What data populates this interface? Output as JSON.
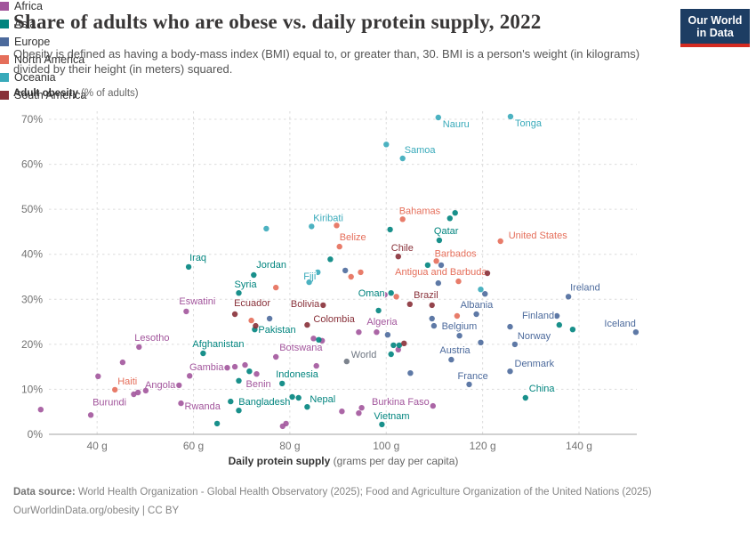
{
  "header": {
    "title": "Share of adults who are obese vs. daily protein supply, 2022",
    "subtitle": "Obesity is defined as having a body-mass index (BMI) equal to, or greater than, 30. BMI is a person's weight (in kilograms) divided by their height (in meters) squared.",
    "logo_line1": "Our World",
    "logo_line2": "in Data"
  },
  "brand": {
    "navy": "#1d3d63",
    "red": "#d42b21"
  },
  "footer": {
    "source_label": "Data source:",
    "source_text": " World Health Organization - Global Health Observatory (2025); Food and Agriculture Organization of the United Nations (2025)",
    "license": "OurWorldinData.org/obesity | CC BY"
  },
  "chart_data": {
    "type": "scatter",
    "title": "Share of adults who are obese vs. daily protein supply, 2022",
    "xlabel_bold": "Daily protein supply",
    "xlabel_rest": " (grams per day per capita)",
    "ylabel_bold": "Adult obesity",
    "ylabel_rest": " (% of adults)",
    "xlim": [
      30,
      152
    ],
    "ylim": [
      0,
      70
    ],
    "grid": "dashed",
    "legend_position": "right",
    "x_ticks": [
      {
        "v": 40,
        "label": "40 g"
      },
      {
        "v": 60,
        "label": "60 g"
      },
      {
        "v": 80,
        "label": "80 g"
      },
      {
        "v": 100,
        "label": "100 g"
      },
      {
        "v": 120,
        "label": "120 g"
      },
      {
        "v": 140,
        "label": "140 g"
      }
    ],
    "y_ticks": [
      {
        "v": 0,
        "label": "0%"
      },
      {
        "v": 10,
        "label": "10%"
      },
      {
        "v": 20,
        "label": "20%"
      },
      {
        "v": 30,
        "label": "30%"
      },
      {
        "v": 40,
        "label": "40%"
      },
      {
        "v": 50,
        "label": "50%"
      },
      {
        "v": 60,
        "label": "60%"
      },
      {
        "v": 70,
        "label": "70%"
      }
    ],
    "legend": [
      {
        "name": "Africa",
        "color": "#a2559c"
      },
      {
        "name": "Asia",
        "color": "#00847e"
      },
      {
        "name": "Europe",
        "color": "#4c6a9c"
      },
      {
        "name": "North America",
        "color": "#e56e5a"
      },
      {
        "name": "Oceania",
        "color": "#38aaba"
      },
      {
        "name": "South America",
        "color": "#883039"
      }
    ],
    "series": [
      {
        "name": "Africa",
        "color": "#a2559c",
        "points": [
          {
            "x": 58.5,
            "y": 27.3,
            "label": "Eswatini",
            "dx": -8,
            "dy": -8,
            "anchor": "start"
          },
          {
            "x": 48.7,
            "y": 19.4,
            "label": "Lesotho",
            "dx": -5,
            "dy": -7,
            "anchor": "start"
          },
          {
            "x": 98.0,
            "y": 22.7,
            "label": "Algeria",
            "dx": -11,
            "dy": -8,
            "anchor": "start"
          },
          {
            "x": 77.1,
            "y": 17.2,
            "label": "Botswana",
            "dx": 4,
            "dy": -7,
            "anchor": "start"
          },
          {
            "x": 67.0,
            "y": 14.8,
            "label": "Gambia",
            "dx": -4,
            "dy": 3,
            "anchor": "end"
          },
          {
            "x": 57.0,
            "y": 10.9,
            "label": "Angola",
            "dx": -4,
            "dy": 3,
            "anchor": "end"
          },
          {
            "x": 73.1,
            "y": 13.4,
            "label": "Benin",
            "dx": -12,
            "dy": 15,
            "anchor": "start"
          },
          {
            "x": 109.7,
            "y": 6.3,
            "label": "Burkina Faso",
            "dx": -4,
            "dy": -1,
            "anchor": "end"
          },
          {
            "x": 57.4,
            "y": 6.9,
            "label": "Rwanda",
            "dx": 4,
            "dy": 7,
            "anchor": "start"
          },
          {
            "x": 38.7,
            "y": 4.3,
            "label": "Burundi",
            "dx": 2,
            "dy": -11,
            "anchor": "start"
          },
          {
            "x": 28.3,
            "y": 5.5
          },
          {
            "x": 45.3,
            "y": 16.0
          },
          {
            "x": 40.2,
            "y": 12.9
          },
          {
            "x": 47.6,
            "y": 8.9
          },
          {
            "x": 48.5,
            "y": 9.3
          },
          {
            "x": 50.1,
            "y": 9.7
          },
          {
            "x": 59.2,
            "y": 13.0
          },
          {
            "x": 85.5,
            "y": 15.2
          },
          {
            "x": 99.7,
            "y": 31.0
          },
          {
            "x": 94.3,
            "y": 22.7
          },
          {
            "x": 86.7,
            "y": 20.8
          },
          {
            "x": 84.9,
            "y": 21.3
          },
          {
            "x": 70.7,
            "y": 15.4
          },
          {
            "x": 68.6,
            "y": 15.0
          },
          {
            "x": 90.8,
            "y": 5.1
          },
          {
            "x": 94.3,
            "y": 4.7
          },
          {
            "x": 94.9,
            "y": 5.9
          },
          {
            "x": 78.5,
            "y": 1.8
          },
          {
            "x": 79.2,
            "y": 2.4
          },
          {
            "x": 102.5,
            "y": 18.8
          }
        ]
      },
      {
        "name": "Asia",
        "color": "#00847e",
        "points": [
          {
            "x": 111.0,
            "y": 43.1,
            "label": "Qatar",
            "dx": -6,
            "dy": -7,
            "anchor": "start"
          },
          {
            "x": 59.0,
            "y": 37.2,
            "label": "Iraq",
            "dx": 1,
            "dy": -7,
            "anchor": "start"
          },
          {
            "x": 72.5,
            "y": 35.4,
            "label": "Jordan",
            "dx": 3,
            "dy": -8,
            "anchor": "start"
          },
          {
            "x": 69.4,
            "y": 31.4,
            "label": "Syria",
            "dx": -5,
            "dy": -6,
            "anchor": "start"
          },
          {
            "x": 101.0,
            "y": 31.4,
            "label": "Oman",
            "dx": -7,
            "dy": 4,
            "anchor": "end"
          },
          {
            "x": 72.7,
            "y": 23.3,
            "label": "Pakistan",
            "dx": 4,
            "dy": 4,
            "anchor": "start"
          },
          {
            "x": 62.0,
            "y": 18.0,
            "label": "Afghanistan",
            "dx": -12,
            "dy": -7,
            "anchor": "start"
          },
          {
            "x": 78.4,
            "y": 11.3,
            "label": "Indonesia",
            "dx": -7,
            "dy": -7,
            "anchor": "start"
          },
          {
            "x": 67.7,
            "y": 7.3,
            "label": "Bangladesh",
            "dx": 9,
            "dy": 4,
            "anchor": "start"
          },
          {
            "x": 83.6,
            "y": 6.1,
            "label": "Nepal",
            "dx": 3,
            "dy": -5,
            "anchor": "start"
          },
          {
            "x": 99.1,
            "y": 2.2,
            "label": "Vietnam",
            "dx": -9,
            "dy": -6,
            "anchor": "start"
          },
          {
            "x": 128.9,
            "y": 8.1,
            "label": "China",
            "dx": 4,
            "dy": -7,
            "anchor": "start"
          },
          {
            "x": 113.2,
            "y": 48.0
          },
          {
            "x": 114.3,
            "y": 49.2
          },
          {
            "x": 100.8,
            "y": 45.5
          },
          {
            "x": 108.6,
            "y": 37.6
          },
          {
            "x": 88.4,
            "y": 38.9
          },
          {
            "x": 98.4,
            "y": 27.5
          },
          {
            "x": 101.5,
            "y": 19.8
          },
          {
            "x": 102.7,
            "y": 19.8
          },
          {
            "x": 101.0,
            "y": 17.8
          },
          {
            "x": 135.9,
            "y": 24.3
          },
          {
            "x": 138.7,
            "y": 23.3
          },
          {
            "x": 86.0,
            "y": 21.0
          },
          {
            "x": 71.6,
            "y": 14.0
          },
          {
            "x": 69.4,
            "y": 11.9
          },
          {
            "x": 80.5,
            "y": 8.3
          },
          {
            "x": 81.8,
            "y": 8.1
          },
          {
            "x": 69.4,
            "y": 5.3
          },
          {
            "x": 64.9,
            "y": 2.4
          }
        ]
      },
      {
        "name": "Europe",
        "color": "#4c6a9c",
        "points": [
          {
            "x": 137.8,
            "y": 30.6,
            "label": "Ireland",
            "dx": 2,
            "dy": -7,
            "anchor": "start"
          },
          {
            "x": 118.7,
            "y": 26.7,
            "label": "Albania",
            "dx": -18,
            "dy": -7,
            "anchor": "start"
          },
          {
            "x": 135.4,
            "y": 26.3,
            "label": "Finland",
            "dx": -3,
            "dy": 3,
            "anchor": "end"
          },
          {
            "x": 151.8,
            "y": 22.7,
            "label": "Iceland",
            "dx": 0,
            "dy": -6,
            "anchor": "end"
          },
          {
            "x": 115.2,
            "y": 21.9,
            "label": "Belgium",
            "dx": -20,
            "dy": -7,
            "anchor": "start"
          },
          {
            "x": 126.7,
            "y": 20.0,
            "label": "Norway",
            "dx": 3,
            "dy": -6,
            "anchor": "start"
          },
          {
            "x": 113.5,
            "y": 16.6,
            "label": "Austria",
            "dx": -13,
            "dy": -7,
            "anchor": "start"
          },
          {
            "x": 125.7,
            "y": 14.0,
            "label": "Denmark",
            "dx": 5,
            "dy": -5,
            "anchor": "start"
          },
          {
            "x": 117.2,
            "y": 11.1,
            "label": "France",
            "dx": -13,
            "dy": -6,
            "anchor": "start"
          },
          {
            "x": 111.4,
            "y": 37.6
          },
          {
            "x": 110.8,
            "y": 33.6
          },
          {
            "x": 120.5,
            "y": 31.2
          },
          {
            "x": 109.5,
            "y": 25.7
          },
          {
            "x": 109.9,
            "y": 24.1
          },
          {
            "x": 119.6,
            "y": 20.4
          },
          {
            "x": 100.3,
            "y": 22.1
          },
          {
            "x": 105.0,
            "y": 13.6
          },
          {
            "x": 125.7,
            "y": 23.9
          },
          {
            "x": 91.5,
            "y": 36.4
          },
          {
            "x": 75.8,
            "y": 25.7
          }
        ]
      },
      {
        "name": "North America",
        "color": "#e56e5a",
        "points": [
          {
            "x": 103.4,
            "y": 47.8,
            "label": "Bahamas",
            "dx": -4,
            "dy": -6,
            "anchor": "start"
          },
          {
            "x": 90.3,
            "y": 41.7,
            "label": "Belize",
            "dx": 0,
            "dy": -7,
            "anchor": "start"
          },
          {
            "x": 123.7,
            "y": 42.9,
            "label": "United States",
            "dx": 9,
            "dy": -3,
            "anchor": "start"
          },
          {
            "x": 110.4,
            "y": 38.5,
            "label": "Barbados",
            "dx": -2,
            "dy": -5,
            "anchor": "start"
          },
          {
            "x": 115.0,
            "y": 34.0,
            "label": "Antigua and Barbuda",
            "dx": 32,
            "dy": -7,
            "anchor": "end"
          },
          {
            "x": 43.7,
            "y": 9.9,
            "label": "Haiti",
            "dx": 3,
            "dy": -6,
            "anchor": "start"
          },
          {
            "x": 89.7,
            "y": 46.4
          },
          {
            "x": 77.1,
            "y": 32.6
          },
          {
            "x": 72.0,
            "y": 25.3
          },
          {
            "x": 102.1,
            "y": 30.6
          },
          {
            "x": 114.7,
            "y": 26.3
          },
          {
            "x": 92.7,
            "y": 35.0
          },
          {
            "x": 94.7,
            "y": 36.0
          }
        ]
      },
      {
        "name": "Oceania",
        "color": "#38aaba",
        "points": [
          {
            "x": 110.8,
            "y": 70.4,
            "label": "Nauru",
            "dx": 5,
            "dy": 11,
            "anchor": "start"
          },
          {
            "x": 125.8,
            "y": 70.6,
            "label": "Tonga",
            "dx": 5,
            "dy": 11,
            "anchor": "start"
          },
          {
            "x": 103.4,
            "y": 61.3,
            "label": "Samoa",
            "dx": 2,
            "dy": -6,
            "anchor": "start"
          },
          {
            "x": 84.5,
            "y": 46.2,
            "label": "Kiribati",
            "dx": 2,
            "dy": -6,
            "anchor": "start"
          },
          {
            "x": 85.8,
            "y": 36.0,
            "label": "Fiji",
            "dx": -2,
            "dy": 8,
            "anchor": "end"
          },
          {
            "x": 100.0,
            "y": 64.4
          },
          {
            "x": 75.1,
            "y": 45.7
          },
          {
            "x": 84.0,
            "y": 33.8
          },
          {
            "x": 119.6,
            "y": 32.2
          }
        ]
      },
      {
        "name": "South America",
        "color": "#883039",
        "points": [
          {
            "x": 102.5,
            "y": 39.5,
            "label": "Chile",
            "dx": -8,
            "dy": -6,
            "anchor": "start"
          },
          {
            "x": 109.5,
            "y": 28.7,
            "label": "Brazil",
            "dx": 7,
            "dy": -8,
            "anchor": "end"
          },
          {
            "x": 68.6,
            "y": 26.7,
            "label": "Ecuador",
            "dx": -1,
            "dy": -9,
            "anchor": "start"
          },
          {
            "x": 86.9,
            "y": 28.7,
            "label": "Bolivia",
            "dx": -4,
            "dy": 2,
            "anchor": "end"
          },
          {
            "x": 83.6,
            "y": 24.3,
            "label": "Colombia",
            "dx": 7,
            "dy": -3,
            "anchor": "start"
          },
          {
            "x": 121.0,
            "y": 35.8
          },
          {
            "x": 104.9,
            "y": 28.9
          },
          {
            "x": 103.7,
            "y": 20.2
          },
          {
            "x": 72.9,
            "y": 24.1
          }
        ]
      },
      {
        "name": "World",
        "color": "#6e7581",
        "points": [
          {
            "x": 91.8,
            "y": 16.2,
            "label": "World",
            "dx": 5,
            "dy": -4,
            "anchor": "start"
          }
        ]
      }
    ]
  }
}
